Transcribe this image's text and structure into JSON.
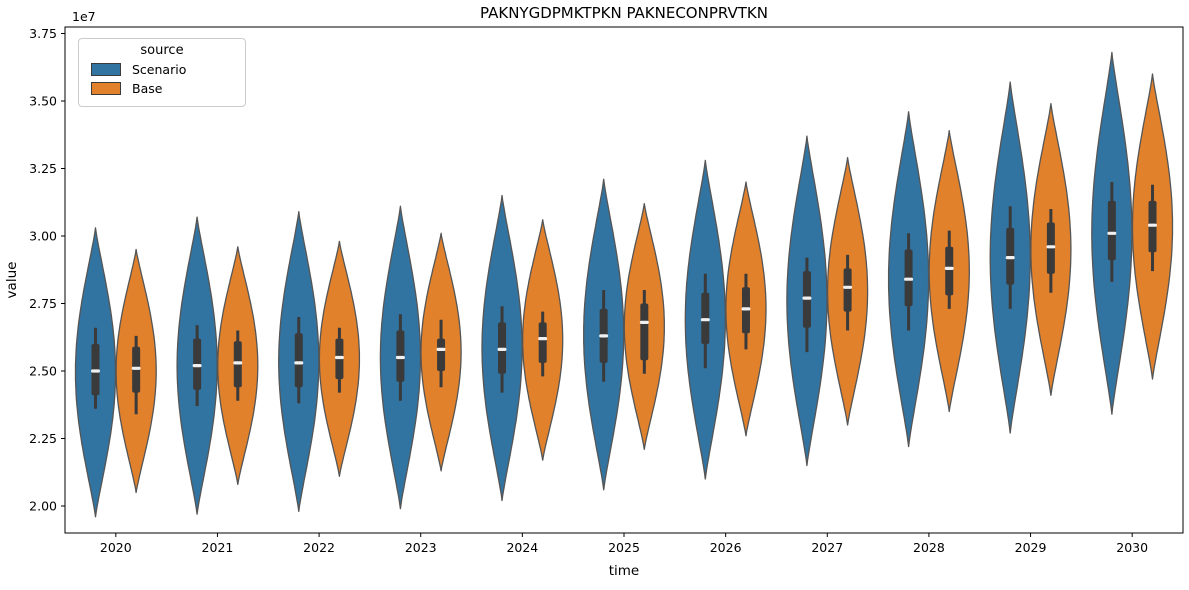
{
  "chart_data": {
    "type": "violin",
    "title": "PAKNYGDPMKTPKN PAKNECONPRVTKN",
    "xlabel": "time",
    "ylabel": "value",
    "y_offset_label": "1e7",
    "value_unit": 10000000,
    "ylim": [
      1.9,
      3.78
    ],
    "grid": false,
    "yticks": [
      "2.00",
      "2.25",
      "2.50",
      "2.75",
      "3.00",
      "3.25",
      "3.50",
      "3.75"
    ],
    "ytick_values": [
      2.0,
      2.25,
      2.5,
      2.75,
      3.0,
      3.25,
      3.5,
      3.75
    ],
    "categories": [
      "2020",
      "2021",
      "2022",
      "2023",
      "2024",
      "2025",
      "2026",
      "2027",
      "2028",
      "2029",
      "2030"
    ],
    "legend": {
      "title": "source",
      "position": "upper left",
      "entries": [
        {
          "label": "Scenario",
          "color": "#3274a1"
        },
        {
          "label": "Base",
          "color": "#e1812c"
        }
      ]
    },
    "style": {
      "violin_edge": "#555555",
      "box_color": "#3a3a3a",
      "whisker_color": "#3a3a3a",
      "median_color": "#f0f0f0",
      "spine_color": "#000000"
    },
    "series": [
      {
        "name": "Scenario",
        "color": "#3274a1",
        "stats": [
          {
            "min": 1.96,
            "whisker_low": 2.36,
            "q1": 2.41,
            "median": 2.5,
            "q3": 2.6,
            "whisker_high": 2.66,
            "max": 3.03
          },
          {
            "min": 1.97,
            "whisker_low": 2.37,
            "q1": 2.43,
            "median": 2.52,
            "q3": 2.62,
            "whisker_high": 2.67,
            "max": 3.07
          },
          {
            "min": 1.98,
            "whisker_low": 2.38,
            "q1": 2.44,
            "median": 2.53,
            "q3": 2.64,
            "whisker_high": 2.7,
            "max": 3.09
          },
          {
            "min": 1.99,
            "whisker_low": 2.39,
            "q1": 2.46,
            "median": 2.55,
            "q3": 2.65,
            "whisker_high": 2.71,
            "max": 3.11
          },
          {
            "min": 2.02,
            "whisker_low": 2.42,
            "q1": 2.49,
            "median": 2.58,
            "q3": 2.68,
            "whisker_high": 2.74,
            "max": 3.15
          },
          {
            "min": 2.06,
            "whisker_low": 2.46,
            "q1": 2.53,
            "median": 2.63,
            "q3": 2.73,
            "whisker_high": 2.8,
            "max": 3.21
          },
          {
            "min": 2.1,
            "whisker_low": 2.51,
            "q1": 2.6,
            "median": 2.69,
            "q3": 2.79,
            "whisker_high": 2.86,
            "max": 3.28
          },
          {
            "min": 2.15,
            "whisker_low": 2.57,
            "q1": 2.66,
            "median": 2.77,
            "q3": 2.87,
            "whisker_high": 2.92,
            "max": 3.37
          },
          {
            "min": 2.22,
            "whisker_low": 2.65,
            "q1": 2.74,
            "median": 2.84,
            "q3": 2.95,
            "whisker_high": 3.01,
            "max": 3.46
          },
          {
            "min": 2.27,
            "whisker_low": 2.73,
            "q1": 2.82,
            "median": 2.92,
            "q3": 3.03,
            "whisker_high": 3.11,
            "max": 3.57
          },
          {
            "min": 2.34,
            "whisker_low": 2.83,
            "q1": 2.91,
            "median": 3.01,
            "q3": 3.13,
            "whisker_high": 3.2,
            "max": 3.68
          }
        ]
      },
      {
        "name": "Base",
        "color": "#e1812c",
        "stats": [
          {
            "min": 2.05,
            "whisker_low": 2.34,
            "q1": 2.42,
            "median": 2.51,
            "q3": 2.59,
            "whisker_high": 2.63,
            "max": 2.95
          },
          {
            "min": 2.08,
            "whisker_low": 2.39,
            "q1": 2.44,
            "median": 2.53,
            "q3": 2.61,
            "whisker_high": 2.65,
            "max": 2.96
          },
          {
            "min": 2.11,
            "whisker_low": 2.42,
            "q1": 2.47,
            "median": 2.55,
            "q3": 2.62,
            "whisker_high": 2.66,
            "max": 2.98
          },
          {
            "min": 2.13,
            "whisker_low": 2.44,
            "q1": 2.5,
            "median": 2.58,
            "q3": 2.62,
            "whisker_high": 2.69,
            "max": 3.01
          },
          {
            "min": 2.17,
            "whisker_low": 2.48,
            "q1": 2.53,
            "median": 2.62,
            "q3": 2.68,
            "whisker_high": 2.72,
            "max": 3.06
          },
          {
            "min": 2.21,
            "whisker_low": 2.49,
            "q1": 2.54,
            "median": 2.68,
            "q3": 2.75,
            "whisker_high": 2.8,
            "max": 3.12
          },
          {
            "min": 2.26,
            "whisker_low": 2.58,
            "q1": 2.64,
            "median": 2.73,
            "q3": 2.81,
            "whisker_high": 2.86,
            "max": 3.2
          },
          {
            "min": 2.3,
            "whisker_low": 2.65,
            "q1": 2.72,
            "median": 2.81,
            "q3": 2.88,
            "whisker_high": 2.93,
            "max": 3.29
          },
          {
            "min": 2.35,
            "whisker_low": 2.73,
            "q1": 2.78,
            "median": 2.88,
            "q3": 2.96,
            "whisker_high": 3.02,
            "max": 3.39
          },
          {
            "min": 2.41,
            "whisker_low": 2.79,
            "q1": 2.86,
            "median": 2.96,
            "q3": 3.05,
            "whisker_high": 3.1,
            "max": 3.49
          },
          {
            "min": 2.47,
            "whisker_low": 2.87,
            "q1": 2.94,
            "median": 3.04,
            "q3": 3.13,
            "whisker_high": 3.19,
            "max": 3.6
          }
        ]
      }
    ]
  }
}
